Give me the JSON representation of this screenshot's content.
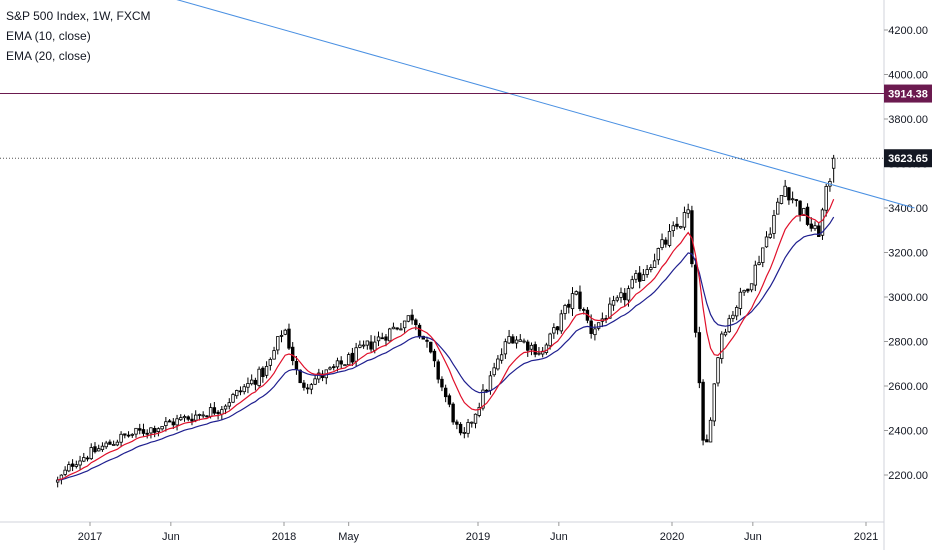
{
  "legend": {
    "title": "S&P 500 Index, 1W, FXCM",
    "ema1": "EMA (10, close)",
    "ema2": "EMA (20, close)"
  },
  "colors": {
    "background": "#ffffff",
    "candle": "#000000",
    "ema10": "#e0102a",
    "ema20": "#1f1f8f",
    "trendline": "#4a90e2",
    "resistance": "#6b1a4f",
    "last_price_bg": "#131722",
    "axis_text": "#131722"
  },
  "chart_data": {
    "type": "candlestick",
    "title": "S&P 500 Index, 1W, FXCM",
    "timeframe": "1W",
    "x_axis_labels": [
      "2017",
      "Jun",
      "2018",
      "May",
      "2019",
      "Jun",
      "2020",
      "Jun",
      "2021"
    ],
    "y_axis_labels": [
      "2200.00",
      "2400.00",
      "2600.00",
      "2800.00",
      "3000.00",
      "3200.00",
      "3400.00",
      "3600.00",
      "3800.00",
      "4000.00",
      "4200.00"
    ],
    "ylim": [
      2000,
      4300
    ],
    "price_labels": {
      "resistance": "3914.38",
      "last": "3623.65"
    },
    "resistance_level": 3914.38,
    "last_price": 3623.65,
    "trendline": {
      "from": {
        "date": "2016-07",
        "price": 4570
      },
      "to": {
        "date": "2021-04",
        "price": 3400
      }
    },
    "series": [
      {
        "name": "EMA (10, close)",
        "indicator": "ema10"
      },
      {
        "name": "EMA (20, close)",
        "indicator": "ema20"
      }
    ],
    "ohlc_keyframes": [
      {
        "date": "2016-11",
        "close": 2170
      },
      {
        "date": "2016-12",
        "close": 2260
      },
      {
        "date": "2017-03",
        "close": 2370
      },
      {
        "date": "2017-06",
        "close": 2435
      },
      {
        "date": "2017-09",
        "close": 2500
      },
      {
        "date": "2017-12",
        "close": 2680
      },
      {
        "date": "2018-01",
        "close": 2870
      },
      {
        "date": "2018-02",
        "close": 2600
      },
      {
        "date": "2018-04",
        "close": 2670
      },
      {
        "date": "2018-07",
        "close": 2820
      },
      {
        "date": "2018-09",
        "close": 2920
      },
      {
        "date": "2018-10",
        "close": 2750
      },
      {
        "date": "2018-12",
        "close": 2350
      },
      {
        "date": "2019-03",
        "close": 2830
      },
      {
        "date": "2019-05",
        "close": 2750
      },
      {
        "date": "2019-07",
        "close": 3020
      },
      {
        "date": "2019-08",
        "close": 2850
      },
      {
        "date": "2019-10",
        "close": 3000
      },
      {
        "date": "2020-02",
        "close": 3380
      },
      {
        "date": "2020-03",
        "close": 2250
      },
      {
        "date": "2020-04",
        "close": 2830
      },
      {
        "date": "2020-06",
        "close": 3100
      },
      {
        "date": "2020-08",
        "close": 3500
      },
      {
        "date": "2020-10",
        "close": 3270
      },
      {
        "date": "2020-11",
        "close": 3624
      }
    ]
  }
}
